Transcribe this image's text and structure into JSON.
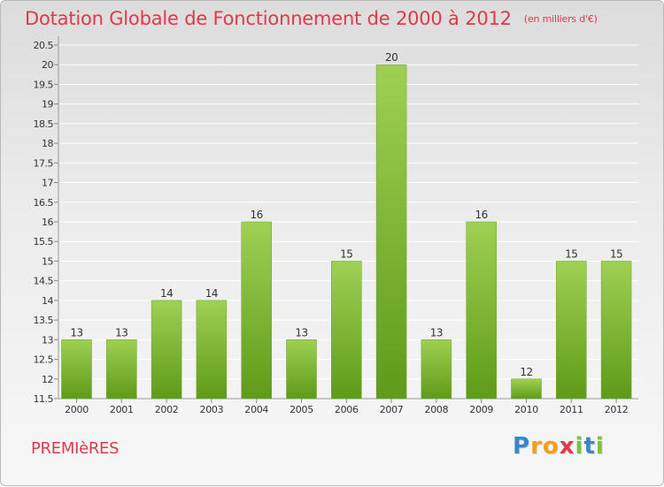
{
  "header": {
    "title": "Dotation Globale de Fonctionnement de 2000 à 2012",
    "subtitle": "(en milliers d'€)"
  },
  "footer": {
    "commune": "PREMIèRES",
    "logo": {
      "letters": [
        "P",
        "r",
        "o",
        "x",
        "i",
        "t",
        "i"
      ],
      "colors": [
        "#3a86c8",
        "#f0a020",
        "#f0a020",
        "#e0394a",
        "#7cc242",
        "#3a86c8",
        "#7cc242"
      ]
    }
  },
  "chart_data": {
    "type": "bar",
    "categories": [
      "2000",
      "2001",
      "2002",
      "2003",
      "2004",
      "2005",
      "2006",
      "2007",
      "2008",
      "2009",
      "2010",
      "2011",
      "2012"
    ],
    "values": [
      13,
      13,
      14,
      14,
      16,
      13,
      15,
      20,
      13,
      16,
      12,
      15,
      15
    ],
    "data_labels": [
      "13",
      "13",
      "14",
      "14",
      "16",
      "13",
      "15",
      "20",
      "13",
      "16",
      "12",
      "15",
      "15"
    ],
    "yticks": [
      "11.5",
      "12",
      "12.5",
      "13",
      "13.5",
      "14",
      "14.5",
      "15",
      "15.5",
      "16",
      "16.5",
      "17",
      "17.5",
      "18",
      "18.5",
      "19",
      "19.5",
      "20",
      "20.5"
    ],
    "ylim": [
      11.5,
      20.5
    ],
    "grid": true,
    "colors": {
      "bar_top": "#9fd053",
      "bar_bottom": "#5e9b19",
      "grid": "#ffffff",
      "axis_text": "#333333"
    }
  }
}
